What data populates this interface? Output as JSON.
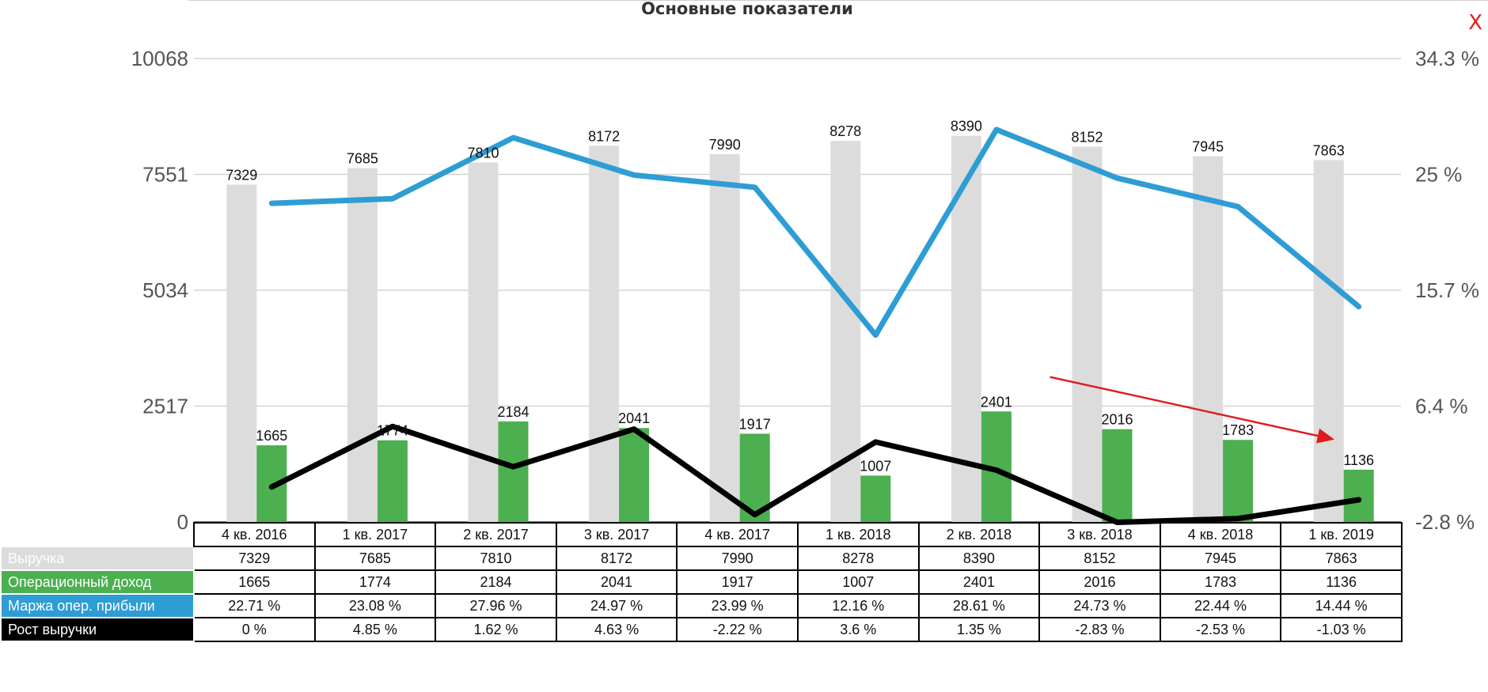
{
  "chart_data": {
    "type": "bar",
    "title": "Основные показатели",
    "categories": [
      "4 кв. 2016",
      "1 кв. 2017",
      "2 кв. 2017",
      "3 кв. 2017",
      "4 кв. 2017",
      "1 кв. 2018",
      "2 кв. 2018",
      "3 кв. 2018",
      "4 кв. 2018",
      "1 кв. 2019"
    ],
    "y_left_ticks": [
      "0",
      "2517",
      "5034",
      "7551",
      "10068"
    ],
    "y_right_ticks": [
      "-2.8 %",
      "6.4 %",
      "15.7 %",
      "25 %",
      "34.3 %"
    ],
    "ylim_left": [
      0,
      10068
    ],
    "ylim_right": [
      -2.8,
      34.3
    ],
    "grid": true,
    "series": [
      {
        "name": "Выручка",
        "type": "bar",
        "axis": "left",
        "color": "#dcdcdc",
        "values": [
          7329,
          7685,
          7810,
          8172,
          7990,
          8278,
          8390,
          8152,
          7945,
          7863
        ],
        "labels": [
          "7329",
          "7685",
          "7810",
          "8172",
          "7990",
          "8278",
          "8390",
          "8152",
          "7945",
          "7863"
        ]
      },
      {
        "name": "Операционный доход",
        "type": "bar",
        "axis": "left",
        "color": "#4caf50",
        "values": [
          1665,
          1774,
          2184,
          2041,
          1917,
          1007,
          2401,
          2016,
          1783,
          1136
        ],
        "labels": [
          "1665",
          "1774",
          "2184",
          "2041",
          "1917",
          "1007",
          "2401",
          "2016",
          "1783",
          "1136"
        ]
      },
      {
        "name": "Маржа опер. прибыли",
        "type": "line",
        "axis": "right",
        "color": "#2e9dd4",
        "values": [
          22.71,
          23.08,
          27.96,
          24.97,
          23.99,
          12.16,
          28.61,
          24.73,
          22.44,
          14.44
        ],
        "labels": [
          "22.71 %",
          "23.08 %",
          "27.96 %",
          "24.97 %",
          "23.99 %",
          "12.16 %",
          "28.61 %",
          "24.73 %",
          "22.44 %",
          "14.44 %"
        ]
      },
      {
        "name": "Рост выручки",
        "type": "line",
        "axis": "right",
        "color": "#000000",
        "values": [
          0,
          4.85,
          1.62,
          4.63,
          -2.22,
          3.6,
          1.35,
          -2.83,
          -2.53,
          -1.03
        ],
        "labels": [
          "0 %",
          "4.85 %",
          "1.62 %",
          "4.63 %",
          "-2.22 %",
          "3.6 %",
          "1.35 %",
          "-2.83 %",
          "-2.53 %",
          "-1.03 %"
        ]
      }
    ],
    "annotation": {
      "type": "arrow",
      "color": "#e01b1b",
      "from": {
        "category": 7,
        "value": 3150
      },
      "to": {
        "category": 9,
        "value": 1800
      }
    }
  },
  "table": {
    "header_row_bg": "#ffffff",
    "row_label_colors": [
      "#dcdcdc",
      "#4caf50",
      "#2e9dd4",
      "#000000"
    ]
  },
  "ui": {
    "close_label": "X"
  }
}
